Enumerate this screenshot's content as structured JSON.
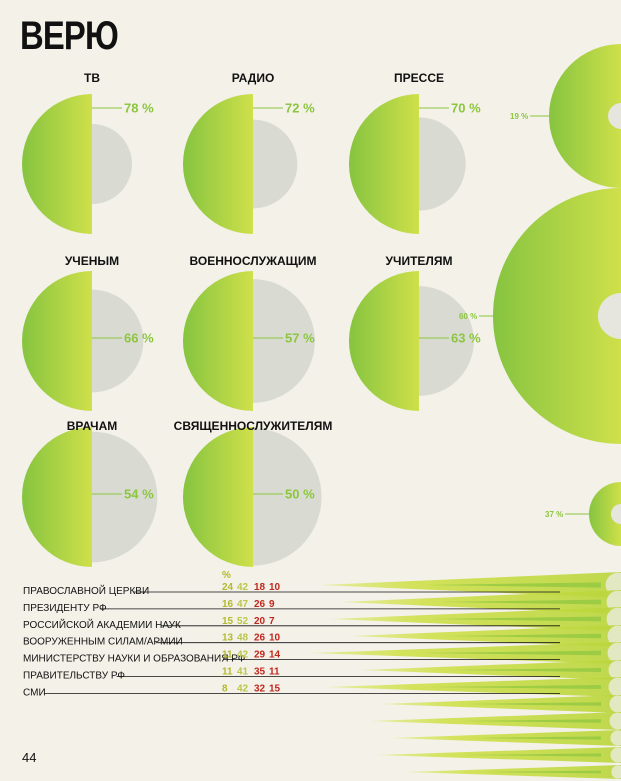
{
  "title": "ВЕРЮ",
  "page_number": "44",
  "palette": {
    "green": "#8cc63f",
    "lime": "#cfe04a",
    "grey": "#d9dad2",
    "grey_lt": "#e6e6df",
    "red": "#c2271e",
    "olive": "#b3ba2c",
    "dark": "#111111"
  },
  "chart_data": [
    {
      "type": "semicircle",
      "items": [
        {
          "label": "ТВ",
          "value": 78,
          "value_label": "78 %"
        },
        {
          "label": "РАДИО",
          "value": 72,
          "value_label": "72 %"
        },
        {
          "label": "ПРЕССЕ",
          "value": 70,
          "value_label": "70 %"
        },
        {
          "label": "УЧЕНЫМ",
          "value": 66,
          "value_label": "66 %"
        },
        {
          "label": "ВОЕННОСЛУЖАЩИМ",
          "value": 57,
          "value_label": "57 %"
        },
        {
          "label": "УЧИТЕЛЯМ",
          "value": 63,
          "value_label": "63 %"
        },
        {
          "label": "ВРАЧАМ",
          "value": 54,
          "value_label": "54 %"
        },
        {
          "label": "СВЯЩЕННОСЛУЖИТЕЛЯМ",
          "value": 50,
          "value_label": "50 %"
        }
      ]
    },
    {
      "type": "semicircle",
      "items": [
        {
          "value": 19,
          "value_label": "19 %"
        },
        {
          "value": 60,
          "value_label": "60 %"
        },
        {
          "value": 37,
          "value_label": "37 %"
        }
      ]
    },
    {
      "type": "table",
      "unit": "%",
      "rows": [
        {
          "label": "ПРАВОСЛАВНОЙ ЦЕРКВИ",
          "values": [
            24,
            42,
            18,
            10
          ]
        },
        {
          "label": "ПРЕЗИДЕНТУ РФ",
          "values": [
            16,
            47,
            26,
            9
          ]
        },
        {
          "label": "РОССИЙСКОЙ АКАДЕМИИ НАУК",
          "values": [
            15,
            52,
            20,
            7
          ]
        },
        {
          "label": "ВООРУЖЕННЫМ СИЛАМ/АРМИИ",
          "values": [
            13,
            48,
            26,
            10
          ]
        },
        {
          "label": "МИНИСТЕРСТВУ НАУКИ И ОБРАЗОВАНИЯ РФ",
          "values": [
            11,
            42,
            29,
            14
          ]
        },
        {
          "label": "ПРАВИТЕЛЬСТВУ РФ",
          "values": [
            11,
            41,
            35,
            11
          ]
        },
        {
          "label": "СМИ",
          "values": [
            8,
            42,
            32,
            15
          ]
        }
      ]
    }
  ]
}
